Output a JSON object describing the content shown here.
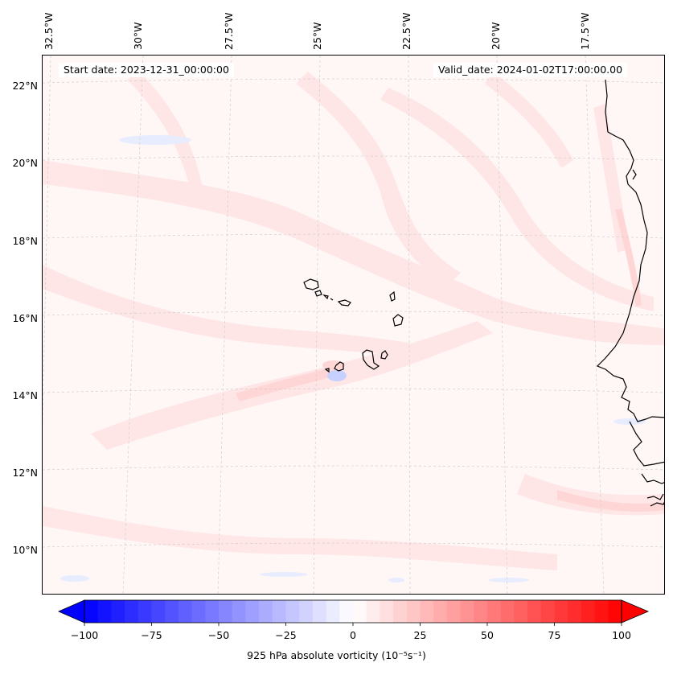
{
  "map": {
    "start_date": "Start date: 2023-12-31_00:00:00",
    "valid_date": "Valid_date: 2024-01-02T17:00:00.00",
    "lon_labels": [
      "32.5°W",
      "30°W",
      "27.5°W",
      "25°W",
      "22.5°W",
      "20°W",
      "17.5°W"
    ],
    "lat_labels": [
      "22°N",
      "20°N",
      "18°N",
      "16°N",
      "14°N",
      "12°N",
      "10°N"
    ],
    "colors": {
      "background": "#fff6f6",
      "positive_light": "#ffe6e6",
      "positive_mid": "#ffd0d0",
      "negative_light": "#e8ecff",
      "grid": "#bbbbbb",
      "coast": "#000000"
    }
  },
  "colorbar": {
    "label": "925 hPa absolute vorticity (10$^{-5}$s$^{-1}$)",
    "label_display": "925 hPa absolute vorticity (10⁻⁵s⁻¹)",
    "range": [
      -100,
      100
    ],
    "ticks": [
      "−100",
      "−75",
      "−50",
      "−25",
      "0",
      "25",
      "50",
      "75",
      "100"
    ],
    "tick_values": [
      -100,
      -75,
      -50,
      -25,
      0,
      25,
      50,
      75,
      100
    ],
    "colors": {
      "min": "#0000ff",
      "mid": "#ffffff",
      "max": "#ff0000"
    },
    "extend": "both"
  }
}
